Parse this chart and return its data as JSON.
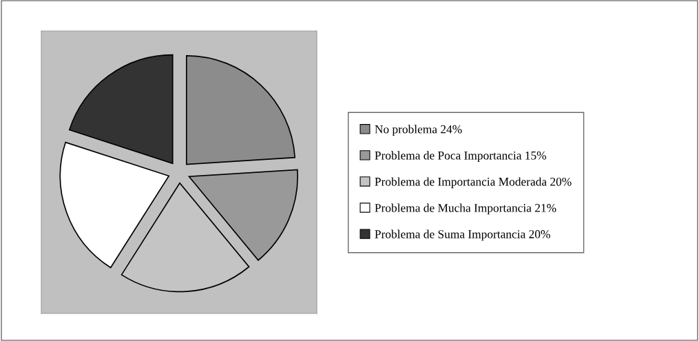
{
  "chart_data": {
    "type": "pie",
    "categories": [
      "No problema 24%",
      "Problema de Poca Importancia 15%",
      "Problema de Importancia Moderada 20%",
      "Problema de Mucha Importancia 21%",
      "Problema de Suma Importancia 20%"
    ],
    "values": [
      24,
      15,
      20,
      21,
      20
    ],
    "colors": [
      "#8c8c8c",
      "#999999",
      "#c4c4c4",
      "#ffffff",
      "#333333"
    ],
    "legend": "right"
  }
}
